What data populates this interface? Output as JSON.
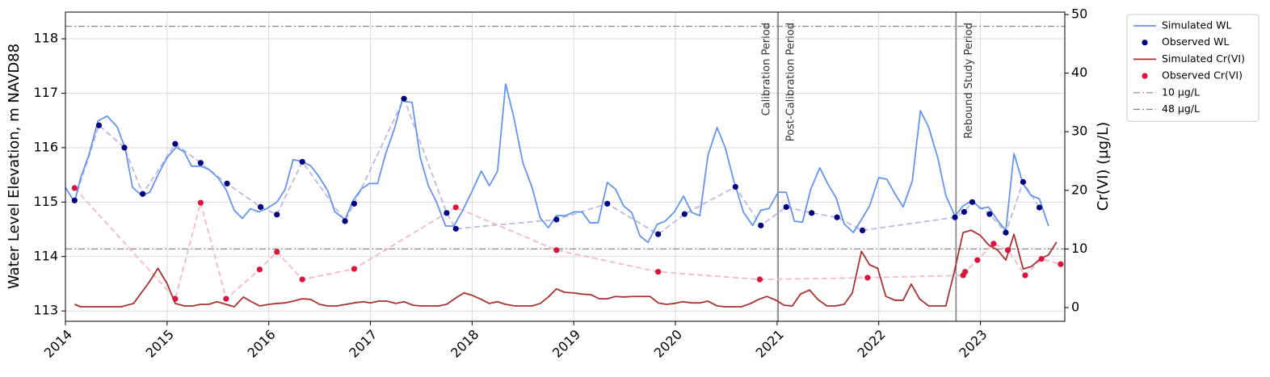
{
  "chart_data": {
    "type": "line",
    "y_label": "Water Level Elevation, m NAVD88",
    "y2_label": "Cr(VI) (µg/L)",
    "xlim": [
      2014,
      2023.83
    ],
    "xticks": [
      2014,
      2015,
      2016,
      2017,
      2018,
      2019,
      2020,
      2021,
      2022,
      2023
    ],
    "ylim": [
      112.81,
      118.49
    ],
    "yticks": [
      113,
      114,
      115,
      116,
      117,
      118
    ],
    "y2lim": [
      -2.34,
      50.41
    ],
    "y2ticks": [
      0,
      10,
      20,
      30,
      40,
      50
    ],
    "grid": true,
    "legend": "outside-upper-right",
    "series": [
      {
        "name": "Simulated WL",
        "color": "#6495ED",
        "style": "line",
        "x": [
          2014.0,
          2014.09,
          2014.15,
          2014.23,
          2014.32,
          2014.41,
          2014.51,
          2014.59,
          2014.66,
          2014.75,
          2014.83,
          2014.91,
          2015.0,
          2015.09,
          2015.17,
          2015.24,
          2015.33,
          2015.41,
          2015.5,
          2015.58,
          2015.66,
          2015.74,
          2015.82,
          2015.9,
          2015.98,
          2016.08,
          2016.16,
          2016.24,
          2016.32,
          2016.41,
          2016.49,
          2016.58,
          2016.65,
          2016.75,
          2016.83,
          2016.91,
          2016.99,
          2017.07,
          2017.15,
          2017.24,
          2017.31,
          2017.41,
          2017.49,
          2017.57,
          2017.65,
          2017.74,
          2017.82,
          2017.9,
          2018.0,
          2018.09,
          2018.17,
          2018.25,
          2018.33,
          2018.41,
          2018.5,
          2018.59,
          2018.67,
          2018.75,
          2018.83,
          2018.92,
          2019.0,
          2019.08,
          2019.16,
          2019.24,
          2019.33,
          2019.41,
          2019.49,
          2019.57,
          2019.65,
          2019.73,
          2019.82,
          2019.9,
          2019.99,
          2020.08,
          2020.16,
          2020.24,
          2020.32,
          2020.41,
          2020.49,
          2020.57,
          2020.67,
          2020.76,
          2020.84,
          2020.92,
          2021.01,
          2021.09,
          2021.17,
          2021.25,
          2021.33,
          2021.42,
          2021.5,
          2021.58,
          2021.66,
          2021.75,
          2021.83,
          2021.91,
          2022.0,
          2022.08,
          2022.16,
          2022.24,
          2022.33,
          2022.41,
          2022.49,
          2022.58,
          2022.66,
          2022.75,
          2022.83,
          2022.92,
          2023.0,
          2023.08,
          2023.17,
          2023.25,
          2023.33,
          2023.42,
          2023.5,
          2023.58,
          2023.67
        ],
        "values": [
          115.27,
          115.0,
          115.45,
          115.86,
          116.49,
          116.58,
          116.38,
          115.97,
          115.27,
          115.12,
          115.18,
          115.5,
          115.82,
          116.01,
          115.92,
          115.66,
          115.66,
          115.6,
          115.45,
          115.23,
          114.85,
          114.7,
          114.88,
          114.82,
          114.88,
          115.0,
          115.23,
          115.78,
          115.75,
          115.67,
          115.48,
          115.21,
          114.82,
          114.68,
          115.03,
          115.24,
          115.34,
          115.34,
          115.89,
          116.37,
          116.86,
          116.83,
          115.82,
          115.3,
          115.0,
          114.56,
          114.56,
          114.82,
          115.2,
          115.57,
          115.3,
          115.57,
          117.17,
          116.56,
          115.72,
          115.27,
          114.71,
          114.53,
          114.75,
          114.75,
          114.82,
          114.82,
          114.62,
          114.62,
          115.36,
          115.24,
          114.93,
          114.81,
          114.38,
          114.26,
          114.59,
          114.65,
          114.82,
          115.11,
          114.81,
          114.75,
          115.86,
          116.37,
          116.0,
          115.42,
          114.81,
          114.57,
          114.85,
          114.88,
          115.18,
          115.18,
          114.65,
          114.63,
          115.23,
          115.63,
          115.33,
          115.08,
          114.6,
          114.44,
          114.68,
          114.93,
          115.45,
          115.42,
          115.15,
          114.91,
          115.39,
          116.68,
          116.38,
          115.82,
          115.12,
          114.74,
          114.93,
          115.03,
          114.88,
          114.91,
          114.66,
          114.48,
          115.89,
          115.33,
          115.12,
          115.06,
          114.56
        ]
      },
      {
        "name": "Observed WL",
        "color": "#000080",
        "style": "markers",
        "connector_color": "#b9b9e3",
        "x": [
          2014.09,
          2014.33,
          2014.58,
          2014.76,
          2015.08,
          2015.33,
          2015.59,
          2015.92,
          2016.08,
          2016.33,
          2016.75,
          2016.84,
          2017.33,
          2017.75,
          2017.84,
          2018.83,
          2019.33,
          2019.83,
          2020.09,
          2020.59,
          2020.84,
          2021.09,
          2021.34,
          2021.59,
          2021.84,
          2022.75,
          2022.84,
          2022.92,
          2023.09,
          2023.25,
          2023.42,
          2023.58
        ],
        "values": [
          115.03,
          116.41,
          116.0,
          115.15,
          116.07,
          115.72,
          115.34,
          114.91,
          114.77,
          115.74,
          114.65,
          114.97,
          116.9,
          114.8,
          114.51,
          114.68,
          114.97,
          114.41,
          114.78,
          115.28,
          114.57,
          114.91,
          114.8,
          114.72,
          114.48,
          114.72,
          114.82,
          115.0,
          114.78,
          114.44,
          115.37,
          114.9
        ]
      },
      {
        "name": "Simulated Cr(VI)",
        "color": "#A83232",
        "style": "line",
        "axis": "y2",
        "x": [
          2014.09,
          2014.15,
          2014.25,
          2014.39,
          2014.55,
          2014.67,
          2014.75,
          2014.83,
          2014.91,
          2015.0,
          2015.08,
          2015.17,
          2015.25,
          2015.33,
          2015.41,
          2015.49,
          2015.58,
          2015.66,
          2015.75,
          2015.83,
          2015.91,
          2016.0,
          2016.08,
          2016.16,
          2016.24,
          2016.33,
          2016.41,
          2016.5,
          2016.58,
          2016.67,
          2016.76,
          2016.84,
          2016.93,
          2017.0,
          2017.08,
          2017.16,
          2017.25,
          2017.33,
          2017.42,
          2017.5,
          2017.59,
          2017.67,
          2017.75,
          2017.84,
          2017.92,
          2018.0,
          2018.09,
          2018.17,
          2018.25,
          2018.33,
          2018.42,
          2018.5,
          2018.59,
          2018.67,
          2018.75,
          2018.83,
          2018.91,
          2019.0,
          2019.08,
          2019.17,
          2019.25,
          2019.33,
          2019.41,
          2019.49,
          2019.58,
          2019.66,
          2019.75,
          2019.83,
          2019.91,
          2019.99,
          2020.07,
          2020.16,
          2020.24,
          2020.32,
          2020.41,
          2020.49,
          2020.57,
          2020.65,
          2020.74,
          2020.82,
          2020.9,
          2020.99,
          2021.07,
          2021.15,
          2021.23,
          2021.32,
          2021.4,
          2021.49,
          2021.57,
          2021.66,
          2021.74,
          2021.83,
          2021.91,
          2021.99,
          2022.07,
          2022.16,
          2022.24,
          2022.32,
          2022.4,
          2022.49,
          2022.57,
          2022.66,
          2022.74,
          2022.83,
          2022.91,
          2023.0,
          2023.08,
          2023.17,
          2023.25,
          2023.33,
          2023.42,
          2023.5,
          2023.59,
          2023.67,
          2023.75
        ],
        "values": [
          0.55,
          0.14,
          0.14,
          0.14,
          0.14,
          0.7,
          2.6,
          4.5,
          6.7,
          4.1,
          0.7,
          0.28,
          0.28,
          0.55,
          0.55,
          1.0,
          0.55,
          0.14,
          1.8,
          1.0,
          0.28,
          0.55,
          0.7,
          0.8,
          1.1,
          1.5,
          1.4,
          0.55,
          0.28,
          0.28,
          0.55,
          0.8,
          1.0,
          0.8,
          1.1,
          1.1,
          0.7,
          1.0,
          0.4,
          0.28,
          0.28,
          0.28,
          0.55,
          1.65,
          2.5,
          2.1,
          1.4,
          0.7,
          1.0,
          0.55,
          0.28,
          0.28,
          0.28,
          0.7,
          1.8,
          3.2,
          2.6,
          2.5,
          2.3,
          2.2,
          1.5,
          1.5,
          1.9,
          1.8,
          1.9,
          1.9,
          1.9,
          0.8,
          0.55,
          0.7,
          1.0,
          0.8,
          0.8,
          1.1,
          0.28,
          0.14,
          0.14,
          0.14,
          0.7,
          1.4,
          1.9,
          1.25,
          0.4,
          0.28,
          2.3,
          3.0,
          1.4,
          0.28,
          0.28,
          0.55,
          2.5,
          9.6,
          7.3,
          6.7,
          1.9,
          1.25,
          1.25,
          4.0,
          1.5,
          0.28,
          0.28,
          0.28,
          5.9,
          12.8,
          13.2,
          12.3,
          10.7,
          9.8,
          8.1,
          12.5,
          6.6,
          7.0,
          8.3,
          9.0,
          11.2
        ]
      },
      {
        "name": "Observed Cr(VI)",
        "color": "#DC143C",
        "style": "markers",
        "axis": "y2",
        "connector_color": "#f5b8c8",
        "x": [
          2014.09,
          2015.08,
          2015.33,
          2015.58,
          2015.91,
          2016.08,
          2016.33,
          2016.84,
          2017.84,
          2018.83,
          2019.83,
          2020.83,
          2021.89,
          2022.83,
          2022.85,
          2022.97,
          2023.13,
          2023.27,
          2023.44,
          2023.6,
          2023.79
        ],
        "values": [
          20.4,
          1.5,
          17.9,
          1.5,
          6.5,
          9.5,
          4.8,
          6.6,
          17.1,
          9.8,
          6.1,
          4.8,
          5.1,
          5.5,
          6.1,
          8.1,
          10.9,
          9.8,
          5.5,
          8.3,
          7.4
        ]
      }
    ],
    "reference_lines": [
      {
        "name": "10 µg/L",
        "value": 10,
        "axis": "y2",
        "color": "#888888"
      },
      {
        "name": "48 µg/L",
        "value": 48,
        "axis": "y2",
        "color": "#888888"
      }
    ],
    "vlines": [
      {
        "x": 2021.01,
        "color": "#808080",
        "labels": [
          "Calibration Period",
          "Post-Calibration Period"
        ]
      },
      {
        "x": 2022.76,
        "color": "#808080",
        "labels": [
          "Rebound Study Period"
        ]
      }
    ]
  }
}
